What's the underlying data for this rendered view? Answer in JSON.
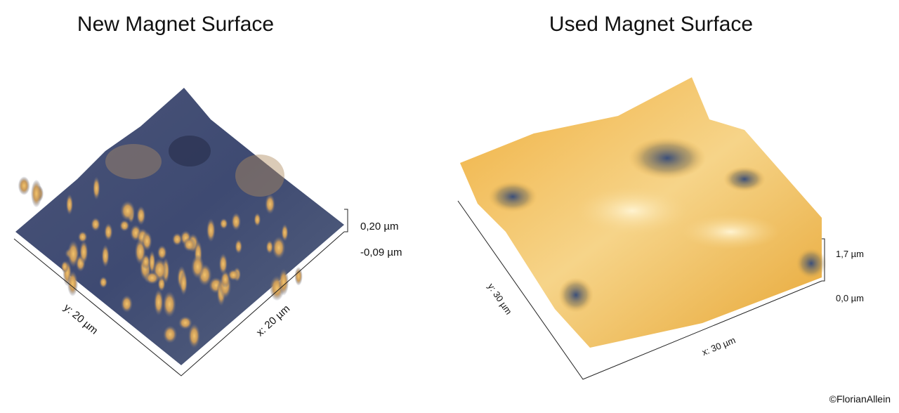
{
  "panels": [
    {
      "title": "New Magnet Surface",
      "x_label": "x: 20 µm",
      "y_label": "y: 20 µm",
      "z_max": "0,20 µm",
      "z_min": "-0,09 µm"
    },
    {
      "title": "Used Magnet Surface",
      "x_label": "x: 30 µm",
      "y_label": "y: 30 µm",
      "z_max": "1,7 µm",
      "z_min": "0,0 µm"
    }
  ],
  "credit": "©FlorianAllein"
}
